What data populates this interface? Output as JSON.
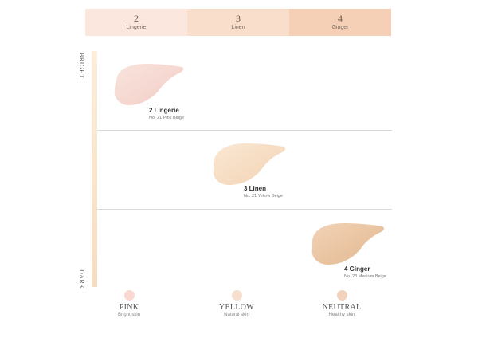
{
  "header_tabs": [
    {
      "number": "2",
      "name": "Lingerie",
      "color": "#fbe7de"
    },
    {
      "number": "3",
      "name": "Linen",
      "color": "#f9dfcb"
    },
    {
      "number": "4",
      "name": "Ginger",
      "color": "#f5d0b6"
    }
  ],
  "axis": {
    "top_label": "BRIGHT",
    "bottom_label": "DARK"
  },
  "shades": [
    {
      "name": "2 Lingerie",
      "desc": "No. 21 Pink Beige",
      "color": "#f7d6cf"
    },
    {
      "name": "3 Linen",
      "desc": "No. 21 Yellow Beige",
      "color": "#f6dcc0"
    },
    {
      "name": "4 Ginger",
      "desc": "No. 23 Medium Beige",
      "color": "#ecc49e"
    }
  ],
  "tones": [
    {
      "title": "PINK",
      "sub": "Bright skin",
      "color": "#f9d8d2"
    },
    {
      "title": "YELLOW",
      "sub": "Natural skin",
      "color": "#f6dfcd"
    },
    {
      "title": "NEUTRAL",
      "sub": "Healthy skin",
      "color": "#f3d2bd"
    }
  ]
}
